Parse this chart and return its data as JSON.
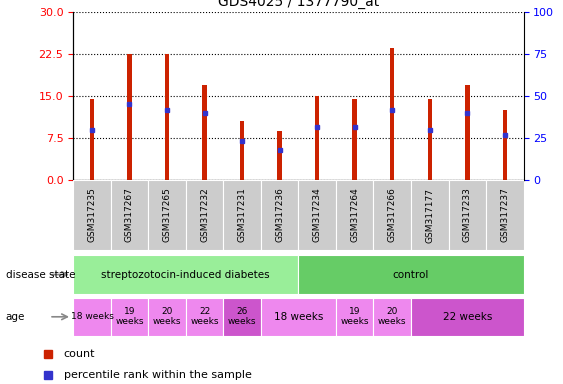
{
  "title": "GDS4025 / 1377790_at",
  "samples": [
    "GSM317235",
    "GSM317267",
    "GSM317265",
    "GSM317232",
    "GSM317231",
    "GSM317236",
    "GSM317234",
    "GSM317264",
    "GSM317266",
    "GSM317177",
    "GSM317233",
    "GSM317237"
  ],
  "count_values": [
    14.5,
    22.5,
    22.5,
    17.0,
    10.5,
    8.7,
    15.0,
    14.5,
    23.5,
    14.5,
    17.0,
    12.5
  ],
  "percentile_values": [
    9.0,
    13.5,
    12.5,
    12.0,
    7.0,
    5.5,
    9.5,
    9.5,
    12.5,
    9.0,
    12.0,
    8.0
  ],
  "bar_color": "#cc2200",
  "dot_color": "#3333cc",
  "ylim_left": [
    0,
    30
  ],
  "ylim_right": [
    0,
    100
  ],
  "yticks_left": [
    0,
    7.5,
    15,
    22.5,
    30
  ],
  "yticks_right": [
    0,
    25,
    50,
    75,
    100
  ],
  "disease_state_groups": [
    {
      "label": "streptozotocin-induced diabetes",
      "start": 0,
      "end": 6,
      "color": "#99ee99"
    },
    {
      "label": "control",
      "start": 6,
      "end": 12,
      "color": "#66cc66"
    }
  ],
  "age_groups": [
    {
      "label": "18 weeks",
      "start": 0,
      "end": 1,
      "color": "#ee88ee"
    },
    {
      "label": "19\nweeks",
      "start": 1,
      "end": 2,
      "color": "#ee88ee"
    },
    {
      "label": "20\nweeks",
      "start": 2,
      "end": 3,
      "color": "#ee88ee"
    },
    {
      "label": "22\nweeks",
      "start": 3,
      "end": 4,
      "color": "#ee88ee"
    },
    {
      "label": "26\nweeks",
      "start": 4,
      "end": 5,
      "color": "#cc55cc"
    },
    {
      "label": "18 weeks",
      "start": 5,
      "end": 7,
      "color": "#ee88ee"
    },
    {
      "label": "19\nweeks",
      "start": 7,
      "end": 8,
      "color": "#ee88ee"
    },
    {
      "label": "20\nweeks",
      "start": 8,
      "end": 9,
      "color": "#ee88ee"
    },
    {
      "label": "22 weeks",
      "start": 9,
      "end": 12,
      "color": "#cc55cc"
    }
  ],
  "legend_count_label": "count",
  "legend_percentile_label": "percentile rank within the sample",
  "disease_state_label": "disease state",
  "age_label": "age",
  "bar_width": 0.12,
  "dot_size": 4
}
